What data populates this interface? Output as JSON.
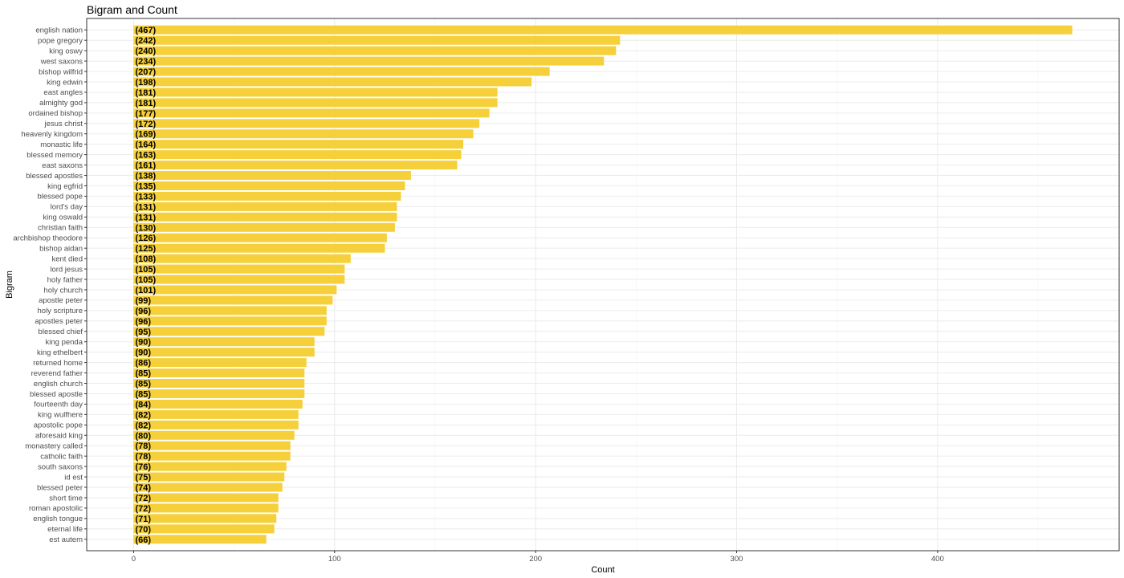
{
  "chart_data": {
    "type": "bar",
    "orientation": "horizontal",
    "title": "Bigram and Count",
    "xlabel": "Count",
    "ylabel": "Bigram",
    "xlim": [
      -23.35,
      490.35
    ],
    "xticks": [
      0,
      100,
      200,
      300,
      400
    ],
    "grid": true,
    "bar_color": "#F5D03B",
    "categories": [
      "english nation",
      "pope gregory",
      "king oswy",
      "west saxons",
      "bishop wilfrid",
      "king edwin",
      "east angles",
      "almighty god",
      "ordained bishop",
      "jesus christ",
      "heavenly kingdom",
      "monastic life",
      "blessed memory",
      "east saxons",
      "blessed apostles",
      "king egfrid",
      "blessed pope",
      "lord's day",
      "king oswald",
      "christian faith",
      "archbishop theodore",
      "bishop aidan",
      "kent died",
      "lord jesus",
      "holy father",
      "holy church",
      "apostle peter",
      "holy scripture",
      "apostles peter",
      "blessed chief",
      "king penda",
      "king ethelbert",
      "returned home",
      "reverend father",
      "english church",
      "blessed apostle",
      "fourteenth day",
      "king wulfhere",
      "apostolic pope",
      "aforesaid king",
      "monastery called",
      "catholic faith",
      "south saxons",
      "id est",
      "blessed peter",
      "short time",
      "roman apostolic",
      "english tongue",
      "eternal life",
      "est autem"
    ],
    "values": [
      467,
      242,
      240,
      234,
      207,
      198,
      181,
      181,
      177,
      172,
      169,
      164,
      163,
      161,
      138,
      135,
      133,
      131,
      131,
      130,
      126,
      125,
      108,
      105,
      105,
      101,
      99,
      96,
      96,
      95,
      90,
      90,
      86,
      85,
      85,
      85,
      84,
      82,
      82,
      80,
      78,
      78,
      76,
      75,
      74,
      72,
      72,
      71,
      70,
      66
    ],
    "labels": [
      "(467)",
      "(242)",
      "(240)",
      "(234)",
      "(207)",
      "(198)",
      "(181)",
      "(181)",
      "(177)",
      "(172)",
      "(169)",
      "(164)",
      "(163)",
      "(161)",
      "(138)",
      "(135)",
      "(133)",
      "(131)",
      "(131)",
      "(130)",
      "(126)",
      "(125)",
      "(108)",
      "(105)",
      "(105)",
      "(101)",
      "(99)",
      "(96)",
      "(96)",
      "(95)",
      "(90)",
      "(90)",
      "(86)",
      "(85)",
      "(85)",
      "(85)",
      "(84)",
      "(82)",
      "(82)",
      "(80)",
      "(78)",
      "(78)",
      "(76)",
      "(75)",
      "(74)",
      "(72)",
      "(72)",
      "(71)",
      "(70)",
      "(66)"
    ]
  }
}
